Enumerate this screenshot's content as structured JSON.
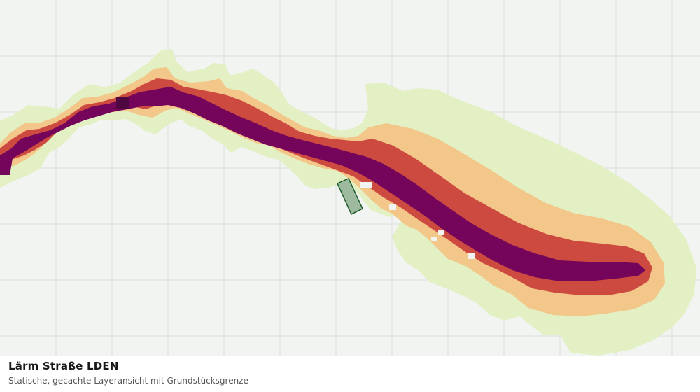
{
  "map": {
    "title": "Lärm Straße LDEN",
    "subtitle": "Statische, gecachte Layeransicht mit Grundstücksgrenze",
    "background_color": "#f2f4f1",
    "grid_color": "#dcdedb",
    "noise_classes": [
      {
        "name": "low",
        "color": "#e2f0c4"
      },
      {
        "name": "medium",
        "color": "#f3c689"
      },
      {
        "name": "high",
        "color": "#cd4a40"
      },
      {
        "name": "very-high",
        "color": "#75055b"
      }
    ],
    "parcel": {
      "fill": "#9dbaa0",
      "stroke": "#1d5a2a"
    }
  }
}
